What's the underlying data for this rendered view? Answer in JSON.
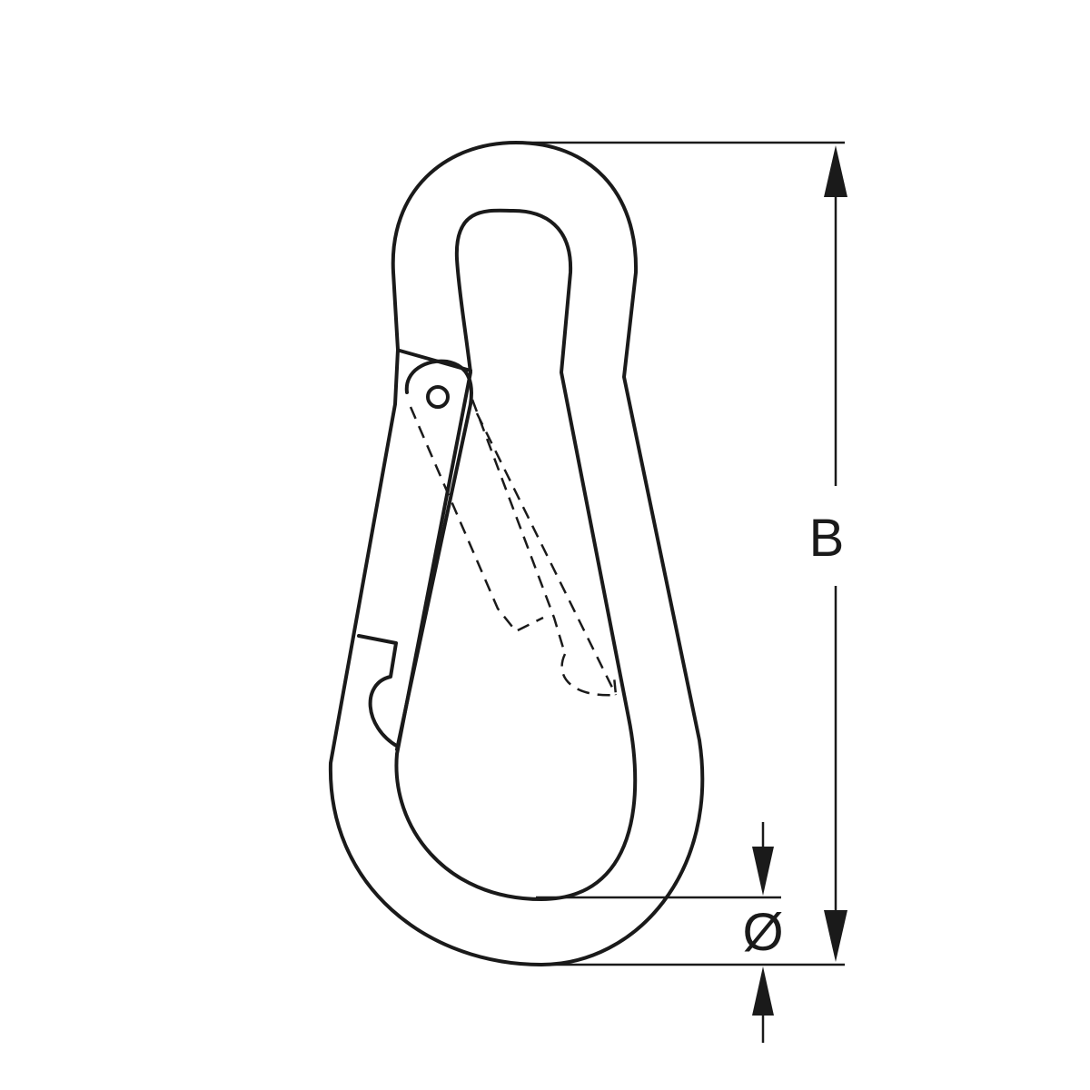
{
  "drawing": {
    "subject": "snap hook",
    "line_color": "#1a1a1a",
    "background_color": "#ffffff"
  },
  "dimensions": {
    "length_label": "B",
    "wire_diameter_label": "Ø"
  }
}
